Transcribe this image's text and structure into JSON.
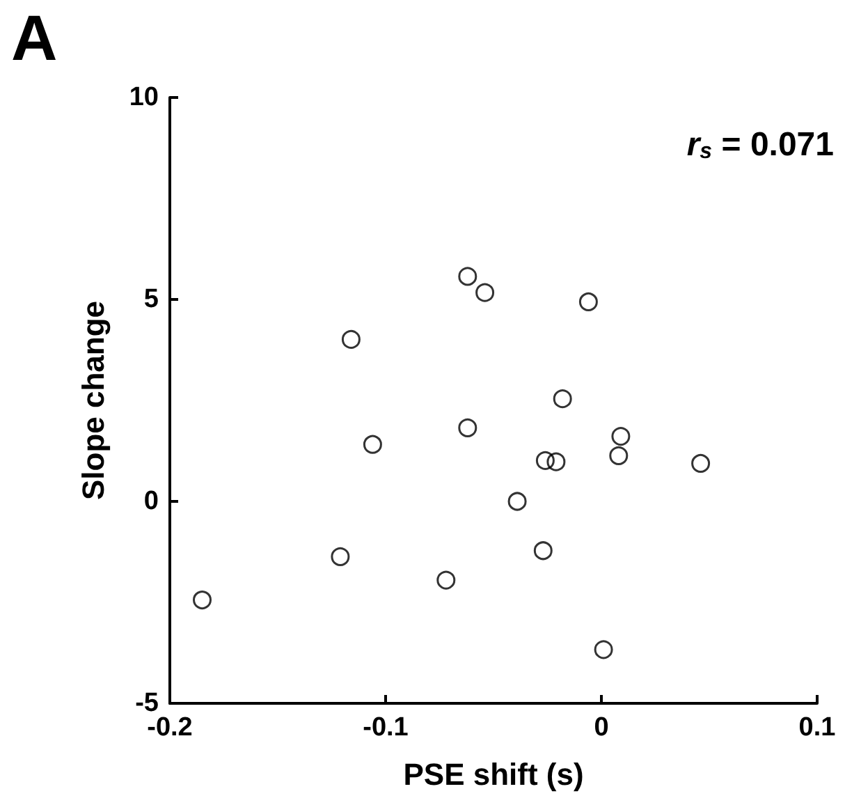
{
  "chart_data": {
    "type": "scatter",
    "xlabel": "PSE shift (s)",
    "ylabel": "Slope change",
    "annotations": [
      "A",
      "r$_{s}$ = 0.071"
    ],
    "x": [
      -0.185,
      -0.121,
      -0.116,
      -0.106,
      -0.072,
      -0.062,
      -0.062,
      -0.054,
      -0.039,
      -0.027,
      -0.026,
      -0.021,
      -0.018,
      -0.006,
      0.001,
      0.009,
      0.008,
      0.046
    ],
    "values": [
      -2.44,
      -1.37,
      4.01,
      1.41,
      -1.95,
      5.57,
      1.82,
      5.17,
      0,
      -1.22,
      1.01,
      0.98,
      2.54,
      4.94,
      -3.67,
      1.61,
      1.13,
      0.94
    ],
    "color": "#000000",
    "marker": "circle",
    "xlim": [
      -0.2,
      0.1
    ],
    "xticks": [
      -0.2,
      -0.1,
      0,
      0.1
    ],
    "ylim": [
      -5,
      10
    ],
    "yticks": [
      -5,
      0,
      5,
      10
    ]
  }
}
